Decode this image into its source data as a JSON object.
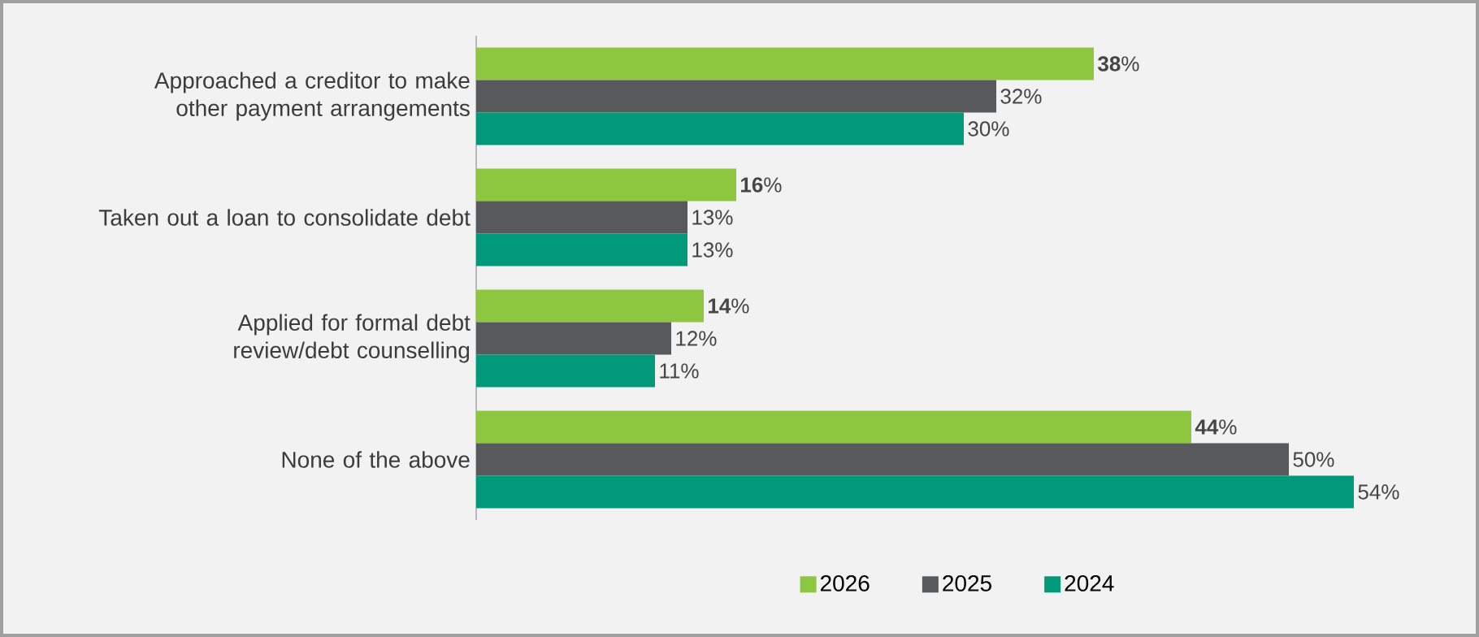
{
  "chart_data": {
    "type": "bar",
    "orientation": "horizontal",
    "categories": [
      "Approached a creditor to make other payment arrangements",
      "Taken out a loan to consolidate debt",
      "Applied for formal debt review/debt counselling",
      "None of the above"
    ],
    "series": [
      {
        "name": "2026",
        "color": "#8dc63f",
        "values": [
          38,
          16,
          14,
          44
        ],
        "value_labels": [
          "**38**%",
          "**16**%",
          "**14**%",
          "**44**%"
        ]
      },
      {
        "name": "2025",
        "color": "#58595b",
        "values": [
          32,
          13,
          12,
          50
        ],
        "value_labels": [
          "32%",
          "13%",
          "12%",
          "50%"
        ]
      },
      {
        "name": "2024",
        "color": "#00997a",
        "values": [
          30,
          13,
          11,
          54
        ],
        "value_labels": [
          "30%",
          "13%",
          "11%",
          "54%"
        ]
      }
    ],
    "tick_labels": "y",
    "legend": "bottom",
    "grid": false
  }
}
